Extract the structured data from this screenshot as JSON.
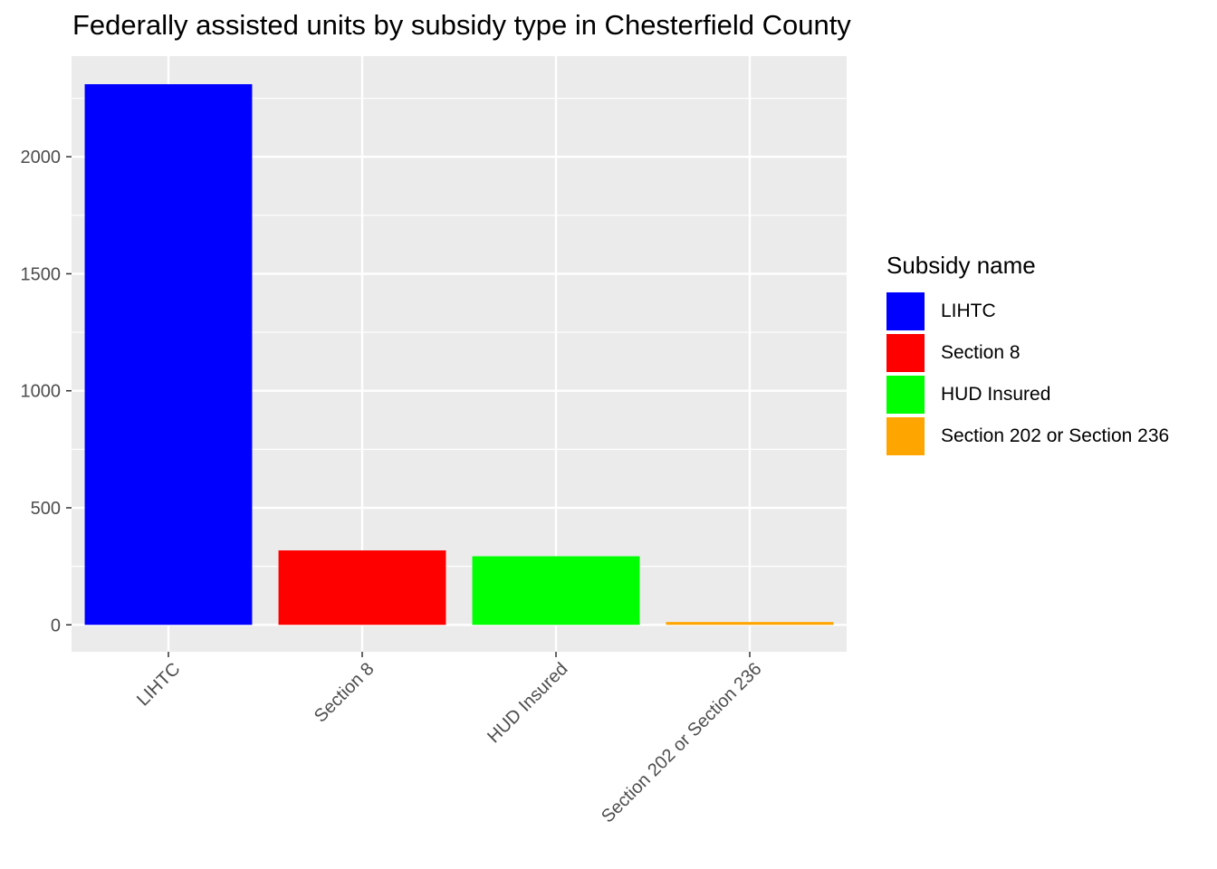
{
  "chart_data": {
    "type": "bar",
    "title": "Federally assisted units by subsidy type in Chesterfield County",
    "xlabel": "",
    "ylabel": "",
    "categories": [
      "LIHTC",
      "Section 8",
      "HUD Insured",
      "Section 202 or Section 236"
    ],
    "values": [
      2310,
      318,
      293,
      12
    ],
    "colors": [
      "#0000FF",
      "#FF0000",
      "#00FF00",
      "#FFA500"
    ],
    "ylim": [
      -115,
      2430
    ],
    "yticks": [
      0,
      500,
      1000,
      1500,
      2000
    ],
    "ytick_labels": [
      "0",
      "500",
      "1000",
      "1500",
      "2000"
    ],
    "grid": true,
    "panel_background": "#EBEBEB",
    "legend": {
      "title": "Subsidy name",
      "position": "right",
      "entries": [
        "LIHTC",
        "Section 8",
        "HUD Insured",
        "Section 202 or Section 236"
      ]
    }
  }
}
